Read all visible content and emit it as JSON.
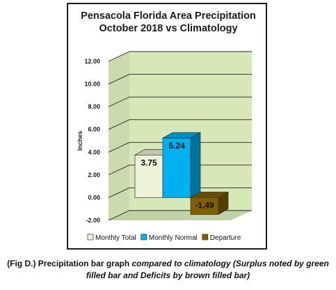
{
  "chart_data": {
    "type": "bar",
    "title_lines": [
      "Pensacola Florida Area Precipitation",
      "October 2018 vs Climatology"
    ],
    "ylabel": "Inches",
    "xlabel": "",
    "ylim": [
      -2,
      12
    ],
    "yticks": [
      "12.00",
      "10.00",
      "8.00",
      "6.00",
      "4.00",
      "2.00",
      "0.00",
      "-2.00"
    ],
    "grid": true,
    "legend_position": "bottom",
    "series": [
      {
        "name": "Monthly Total",
        "value": 3.75,
        "label": "3.75",
        "color": "#eef2d9"
      },
      {
        "name": "Monthly Normal",
        "value": 5.24,
        "label": "5.24",
        "color": "#00b0f0"
      },
      {
        "name": "Departure",
        "value": -1.49,
        "label": "-1.49",
        "color": "#7f6000"
      }
    ],
    "background": "#d6e7b8"
  },
  "caption": {
    "plain": "(Fig D.) Precipitation bar graph ",
    "italic": "compared to climatology (Surplus noted by green filled bar and Deficits by brown filled bar)"
  }
}
